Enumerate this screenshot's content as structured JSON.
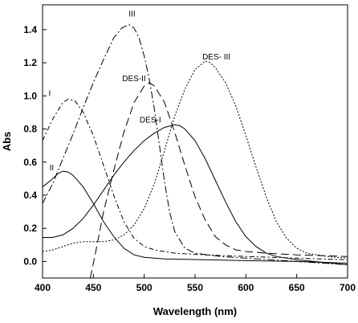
{
  "chart_data": {
    "type": "line",
    "title": "",
    "xlabel": "Wavelength (nm)",
    "ylabel": "Abs",
    "xlim": [
      400,
      700
    ],
    "ylim": [
      -0.1,
      1.55
    ],
    "x_ticks": [
      "400",
      "450",
      "500",
      "550",
      "600",
      "650",
      "700"
    ],
    "y_ticks": [
      "0.0",
      "0.2",
      "0.4",
      "0.6",
      "0.8",
      "1.0",
      "1.2",
      "1.4"
    ],
    "grid": false,
    "series": [
      {
        "name": "I",
        "label_at": [
          407,
          1.0
        ],
        "dash": "6,3,2,3",
        "points": [
          [
            400,
            0.73
          ],
          [
            410,
            0.86
          ],
          [
            420,
            0.96
          ],
          [
            425,
            0.98
          ],
          [
            432,
            0.97
          ],
          [
            440,
            0.9
          ],
          [
            450,
            0.76
          ],
          [
            460,
            0.58
          ],
          [
            470,
            0.4
          ],
          [
            480,
            0.24
          ],
          [
            490,
            0.14
          ],
          [
            500,
            0.09
          ],
          [
            510,
            0.07
          ],
          [
            530,
            0.05
          ],
          [
            560,
            0.04
          ],
          [
            600,
            0.03
          ],
          [
            650,
            0.02
          ],
          [
            700,
            0.01
          ]
        ]
      },
      {
        "name": "II",
        "label_at": [
          409,
          0.55
        ],
        "dash": "",
        "points": [
          [
            400,
            0.45
          ],
          [
            410,
            0.5
          ],
          [
            415,
            0.53
          ],
          [
            420,
            0.545
          ],
          [
            425,
            0.54
          ],
          [
            430,
            0.52
          ],
          [
            440,
            0.45
          ],
          [
            450,
            0.35
          ],
          [
            460,
            0.24
          ],
          [
            470,
            0.15
          ],
          [
            480,
            0.08
          ],
          [
            490,
            0.04
          ],
          [
            500,
            0.025
          ],
          [
            520,
            0.015
          ],
          [
            560,
            0.01
          ],
          [
            600,
            0.005
          ],
          [
            650,
            0.0
          ],
          [
            700,
            -0.01
          ]
        ]
      },
      {
        "name": "III",
        "label_at": [
          488,
          1.48
        ],
        "dash": "9,3,2,3",
        "points": [
          [
            400,
            0.35
          ],
          [
            410,
            0.47
          ],
          [
            420,
            0.62
          ],
          [
            430,
            0.77
          ],
          [
            440,
            0.93
          ],
          [
            450,
            1.08
          ],
          [
            460,
            1.22
          ],
          [
            470,
            1.35
          ],
          [
            478,
            1.41
          ],
          [
            485,
            1.43
          ],
          [
            490,
            1.41
          ],
          [
            495,
            1.35
          ],
          [
            500,
            1.24
          ],
          [
            505,
            1.1
          ],
          [
            510,
            0.92
          ],
          [
            515,
            0.7
          ],
          [
            520,
            0.48
          ],
          [
            525,
            0.3
          ],
          [
            530,
            0.18
          ],
          [
            540,
            0.08
          ],
          [
            550,
            0.05
          ],
          [
            575,
            0.03
          ],
          [
            600,
            0.02
          ],
          [
            650,
            0.0
          ],
          [
            700,
            -0.02
          ]
        ]
      },
      {
        "name": "DES-I",
        "label_at": [
          506,
          0.84
        ],
        "dash": "",
        "points": [
          [
            400,
            0.145
          ],
          [
            410,
            0.145
          ],
          [
            420,
            0.16
          ],
          [
            430,
            0.2
          ],
          [
            440,
            0.26
          ],
          [
            450,
            0.34
          ],
          [
            460,
            0.43
          ],
          [
            470,
            0.52
          ],
          [
            480,
            0.6
          ],
          [
            490,
            0.67
          ],
          [
            500,
            0.73
          ],
          [
            510,
            0.775
          ],
          [
            520,
            0.81
          ],
          [
            530,
            0.825
          ],
          [
            535,
            0.82
          ],
          [
            540,
            0.8
          ],
          [
            550,
            0.73
          ],
          [
            560,
            0.62
          ],
          [
            570,
            0.49
          ],
          [
            580,
            0.36
          ],
          [
            590,
            0.24
          ],
          [
            600,
            0.15
          ],
          [
            610,
            0.09
          ],
          [
            620,
            0.05
          ],
          [
            630,
            0.03
          ],
          [
            650,
            0.01
          ],
          [
            700,
            -0.02
          ]
        ]
      },
      {
        "name": "DES-II",
        "label_at": [
          490,
          1.09
        ],
        "dash": "10,5",
        "points": [
          [
            447,
            -0.12
          ],
          [
            452,
            0.05
          ],
          [
            460,
            0.3
          ],
          [
            470,
            0.55
          ],
          [
            480,
            0.78
          ],
          [
            490,
            0.96
          ],
          [
            500,
            1.06
          ],
          [
            505,
            1.08
          ],
          [
            510,
            1.06
          ],
          [
            520,
            0.96
          ],
          [
            530,
            0.78
          ],
          [
            540,
            0.58
          ],
          [
            550,
            0.39
          ],
          [
            560,
            0.25
          ],
          [
            570,
            0.15
          ],
          [
            580,
            0.1
          ],
          [
            590,
            0.07
          ],
          [
            600,
            0.06
          ],
          [
            620,
            0.05
          ],
          [
            650,
            0.04
          ],
          [
            700,
            0.03
          ]
        ]
      },
      {
        "name": "DES- III",
        "label_at": [
          571,
          1.22
        ],
        "dash": "2,2",
        "points": [
          [
            400,
            0.06
          ],
          [
            410,
            0.07
          ],
          [
            420,
            0.09
          ],
          [
            430,
            0.11
          ],
          [
            440,
            0.12
          ],
          [
            450,
            0.12
          ],
          [
            460,
            0.12
          ],
          [
            470,
            0.13
          ],
          [
            480,
            0.16
          ],
          [
            490,
            0.22
          ],
          [
            500,
            0.32
          ],
          [
            510,
            0.47
          ],
          [
            520,
            0.67
          ],
          [
            530,
            0.88
          ],
          [
            540,
            1.04
          ],
          [
            550,
            1.16
          ],
          [
            560,
            1.21
          ],
          [
            565,
            1.2
          ],
          [
            570,
            1.17
          ],
          [
            580,
            1.08
          ],
          [
            590,
            0.94
          ],
          [
            600,
            0.76
          ],
          [
            610,
            0.57
          ],
          [
            620,
            0.39
          ],
          [
            630,
            0.24
          ],
          [
            640,
            0.14
          ],
          [
            650,
            0.08
          ],
          [
            660,
            0.05
          ],
          [
            680,
            0.03
          ],
          [
            700,
            0.02
          ]
        ]
      }
    ]
  }
}
